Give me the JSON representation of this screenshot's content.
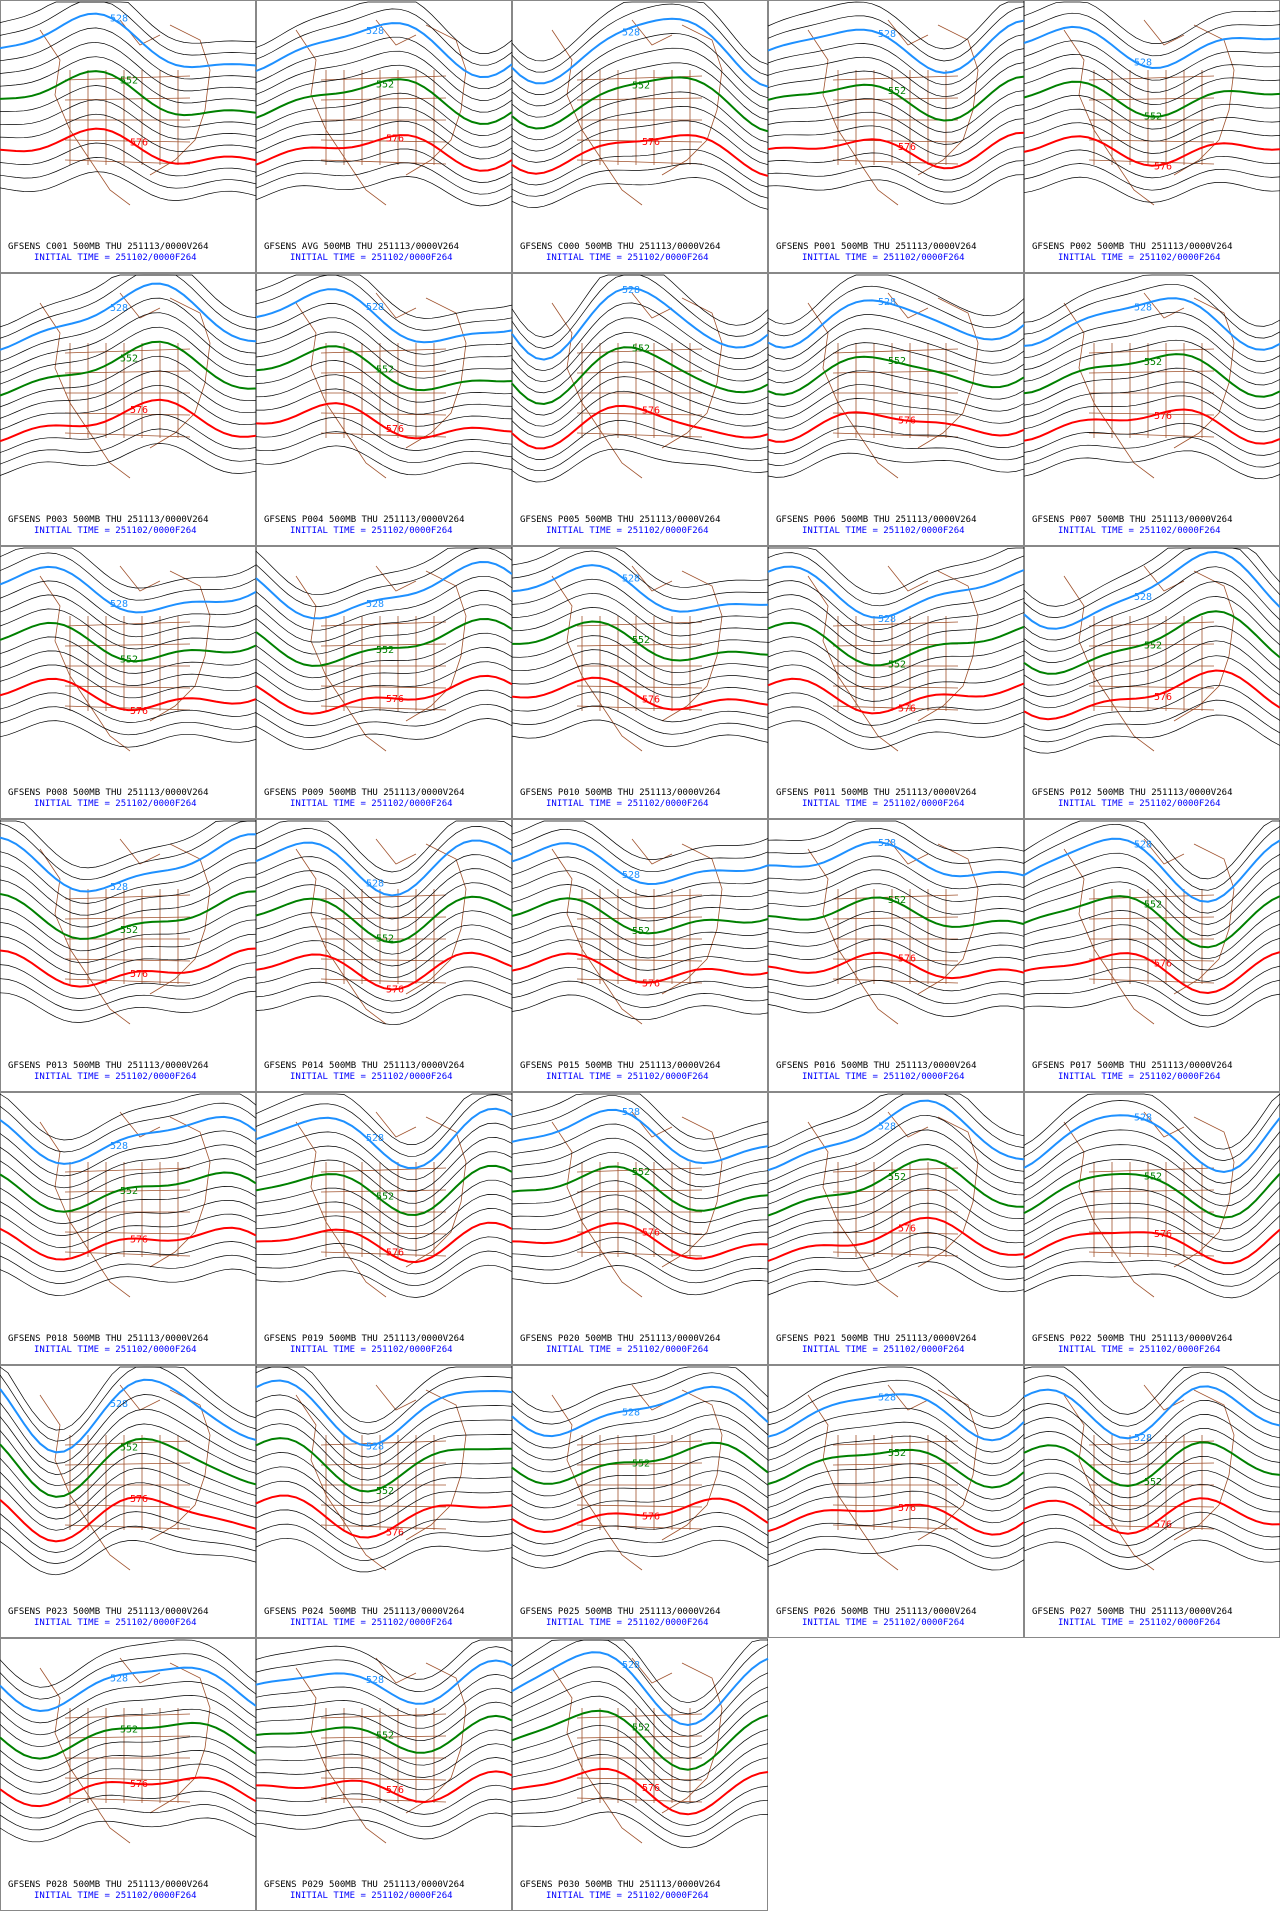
{
  "panels": [
    {
      "title": "GFSENS C001 500MB THU 251113/0000V264",
      "init": "INITIAL TIME = 251102/0000F264",
      "contours": [
        528,
        552,
        576
      ]
    },
    {
      "title": "GFSENS AVG 500MB THU 251113/0000V264",
      "init": "INITIAL TIME = 251102/0000F264",
      "contours": [
        528,
        552,
        576
      ]
    },
    {
      "title": "GFSENS C000 500MB THU 251113/0000V264",
      "init": "INITIAL TIME = 251102/0000F264",
      "contours": [
        528,
        552,
        576
      ]
    },
    {
      "title": "GFSENS P001 500MB THU 251113/0000V264",
      "init": "INITIAL TIME = 251102/0000F264",
      "contours": [
        528,
        552,
        576
      ]
    },
    {
      "title": "GFSENS P002 500MB THU 251113/0000V264",
      "init": "INITIAL TIME = 251102/0000F264",
      "contours": [
        528,
        552,
        576
      ]
    },
    {
      "title": "GFSENS P003 500MB THU 251113/0000V264",
      "init": "INITIAL TIME = 251102/0000F264",
      "contours": [
        528,
        552,
        576
      ]
    },
    {
      "title": "GFSENS P004 500MB THU 251113/0000V264",
      "init": "INITIAL TIME = 251102/0000F264",
      "contours": [
        528,
        552,
        576
      ]
    },
    {
      "title": "GFSENS P005 500MB THU 251113/0000V264",
      "init": "INITIAL TIME = 251102/0000F264",
      "contours": [
        528,
        552,
        576
      ]
    },
    {
      "title": "GFSENS P006 500MB THU 251113/0000V264",
      "init": "INITIAL TIME = 251102/0000F264",
      "contours": [
        528,
        552,
        576
      ]
    },
    {
      "title": "GFSENS P007 500MB THU 251113/0000V264",
      "init": "INITIAL TIME = 251102/0000F264",
      "contours": [
        528,
        552,
        576
      ]
    },
    {
      "title": "GFSENS P008 500MB THU 251113/0000V264",
      "init": "INITIAL TIME = 251102/0000F264",
      "contours": [
        528,
        552,
        576
      ]
    },
    {
      "title": "GFSENS P009 500MB THU 251113/0000V264",
      "init": "INITIAL TIME = 251102/0000F264",
      "contours": [
        528,
        552,
        576
      ]
    },
    {
      "title": "GFSENS P010 500MB THU 251113/0000V264",
      "init": "INITIAL TIME = 251102/0000F264",
      "contours": [
        528,
        552,
        576
      ]
    },
    {
      "title": "GFSENS P011 500MB THU 251113/0000V264",
      "init": "INITIAL TIME = 251102/0000F264",
      "contours": [
        528,
        552,
        576
      ]
    },
    {
      "title": "GFSENS P012 500MB THU 251113/0000V264",
      "init": "INITIAL TIME = 251102/0000F264",
      "contours": [
        528,
        552,
        576
      ]
    },
    {
      "title": "GFSENS P013 500MB THU 251113/0000V264",
      "init": "INITIAL TIME = 251102/0000F264",
      "contours": [
        528,
        552,
        576
      ]
    },
    {
      "title": "GFSENS P014 500MB THU 251113/0000V264",
      "init": "INITIAL TIME = 251102/0000F264",
      "contours": [
        528,
        552,
        576
      ]
    },
    {
      "title": "GFSENS P015 500MB THU 251113/0000V264",
      "init": "INITIAL TIME = 251102/0000F264",
      "contours": [
        528,
        552,
        576
      ]
    },
    {
      "title": "GFSENS P016 500MB THU 251113/0000V264",
      "init": "INITIAL TIME = 251102/0000F264",
      "contours": [
        528,
        552,
        576
      ]
    },
    {
      "title": "GFSENS P017 500MB THU 251113/0000V264",
      "init": "INITIAL TIME = 251102/0000F264",
      "contours": [
        528,
        552,
        576
      ]
    },
    {
      "title": "GFSENS P018 500MB THU 251113/0000V264",
      "init": "INITIAL TIME = 251102/0000F264",
      "contours": [
        528,
        552,
        576
      ]
    },
    {
      "title": "GFSENS P019 500MB THU 251113/0000V264",
      "init": "INITIAL TIME = 251102/0000F264",
      "contours": [
        528,
        552,
        576
      ]
    },
    {
      "title": "GFSENS P020 500MB THU 251113/0000V264",
      "init": "INITIAL TIME = 251102/0000F264",
      "contours": [
        528,
        552,
        576
      ]
    },
    {
      "title": "GFSENS P021 500MB THU 251113/0000V264",
      "init": "INITIAL TIME = 251102/0000F264",
      "contours": [
        528,
        552,
        576
      ]
    },
    {
      "title": "GFSENS P022 500MB THU 251113/0000V264",
      "init": "INITIAL TIME = 251102/0000F264",
      "contours": [
        528,
        552,
        576
      ]
    },
    {
      "title": "GFSENS P023 500MB THU 251113/0000V264",
      "init": "INITIAL TIME = 251102/0000F264",
      "contours": [
        528,
        552,
        576
      ]
    },
    {
      "title": "GFSENS P024 500MB THU 251113/0000V264",
      "init": "INITIAL TIME = 251102/0000F264",
      "contours": [
        528,
        552,
        576
      ]
    },
    {
      "title": "GFSENS P025 500MB THU 251113/0000V264",
      "init": "INITIAL TIME = 251102/0000F264",
      "contours": [
        528,
        552,
        576
      ]
    },
    {
      "title": "GFSENS P026 500MB THU 251113/0000V264",
      "init": "INITIAL TIME = 251102/0000F264",
      "contours": [
        528,
        552,
        576
      ]
    },
    {
      "title": "GFSENS P027 500MB THU 251113/0000V264",
      "init": "INITIAL TIME = 251102/0000F264",
      "contours": [
        528,
        552,
        576
      ]
    },
    {
      "title": "GFSENS P028 500MB THU 251113/0000V264",
      "init": "INITIAL TIME = 251102/0000F264",
      "contours": [
        528,
        552,
        576
      ]
    },
    {
      "title": "GFSENS P029 500MB THU 251113/0000V264",
      "init": "INITIAL TIME = 251102/0000F264",
      "contours": [
        528,
        552,
        576
      ]
    },
    {
      "title": "GFSENS P030 500MB THU 251113/0000V264",
      "init": "INITIAL TIME = 251102/0000F264",
      "contours": [
        528,
        552,
        576
      ]
    }
  ]
}
